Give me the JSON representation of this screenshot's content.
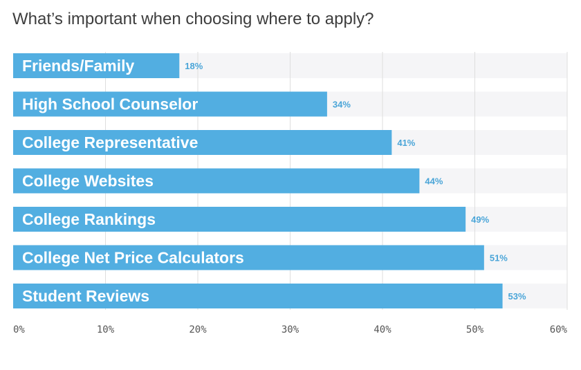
{
  "chart_data": {
    "type": "bar",
    "orientation": "horizontal",
    "title": "What’s important when choosing where to apply?",
    "categories": [
      "Friends/Family",
      "High School Counselor",
      "College Representative",
      "College Websites",
      "College Rankings",
      "College Net Price Calculators",
      "Student Reviews"
    ],
    "values": [
      18,
      34,
      41,
      44,
      49,
      51,
      53
    ],
    "value_labels": [
      "18%",
      "34%",
      "41%",
      "44%",
      "49%",
      "51%",
      "53%"
    ],
    "xlim": [
      0,
      60
    ],
    "x_ticks": [
      0,
      10,
      20,
      30,
      40,
      50,
      60
    ],
    "x_tick_labels": [
      "0%",
      "10%",
      "20%",
      "30%",
      "40%",
      "50%",
      "60%"
    ],
    "xlabel": "",
    "ylabel": "",
    "grid": true,
    "colors": {
      "bar": "#52aee1",
      "track": "#f5f5f7",
      "grid": "#dedede",
      "value_text": "#4aa5d8",
      "title": "#3d3d3d"
    }
  }
}
